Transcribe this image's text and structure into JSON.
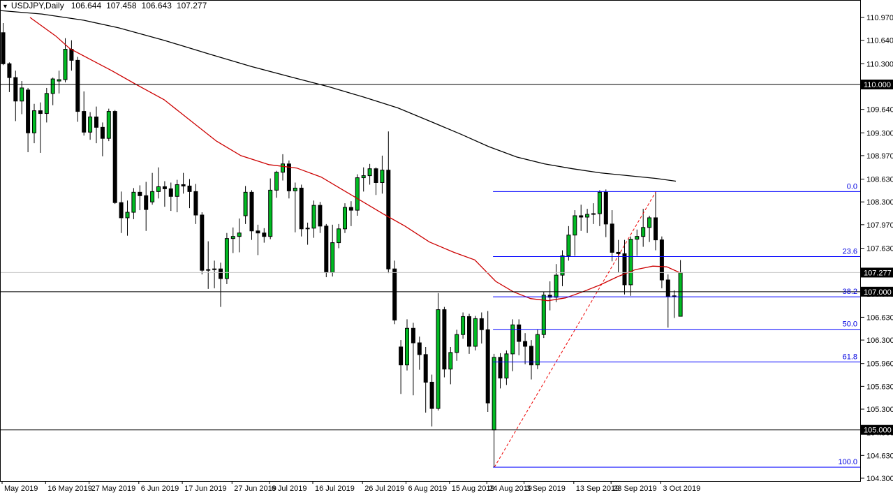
{
  "window": {
    "marker": "▼",
    "symbol_period": "USDJPY,Daily",
    "ohlc_line": {
      "open": "106.644",
      "high": "107.458",
      "low": "106.643",
      "close": "107.277"
    }
  },
  "chart_data": {
    "type": "candlestick",
    "title": "USDJPY,Daily",
    "symbol": "USDJPY",
    "timeframe": "Daily",
    "ylim": [
      104.26,
      111.22
    ],
    "grid": "off",
    "last_bar": {
      "open": 106.644,
      "high": 107.458,
      "low": 106.643,
      "close": 107.277
    },
    "price_axis": {
      "side": "right",
      "ticks": [
        "110.970",
        "110.640",
        "110.300",
        "109.970",
        "109.640",
        "109.300",
        "108.970",
        "108.630",
        "108.300",
        "107.970",
        "107.630",
        "107.300",
        "106.970",
        "106.630",
        "106.300",
        "105.960",
        "105.630",
        "105.300",
        "104.960",
        "104.630",
        "104.300"
      ],
      "boxed_labels": [
        {
          "text": "110.000",
          "price": 110.0,
          "role": "level"
        },
        {
          "text": "107.277",
          "price": 107.277,
          "role": "current-price"
        },
        {
          "text": "107.000",
          "price": 107.0,
          "role": "level"
        },
        {
          "text": "105.000",
          "price": 105.0,
          "role": "level"
        }
      ]
    },
    "time_axis": {
      "labels": [
        {
          "text": "May 2019",
          "bar": 0
        },
        {
          "text": "16 May 2019",
          "bar": 7
        },
        {
          "text": "27 May 2019",
          "bar": 14
        },
        {
          "text": "6 Jun 2019",
          "bar": 22
        },
        {
          "text": "17 Jun 2019",
          "bar": 29
        },
        {
          "text": "27 Jun 2019",
          "bar": 37
        },
        {
          "text": "6 Jul 2019",
          "bar": 43
        },
        {
          "text": "16 Jul 2019",
          "bar": 50
        },
        {
          "text": "26 Jul 2019",
          "bar": 58
        },
        {
          "text": "6 Aug 2019",
          "bar": 65
        },
        {
          "text": "15 Aug 2019",
          "bar": 72
        },
        {
          "text": "24 Aug 2019",
          "bar": 78
        },
        {
          "text": "3 Sep 2019",
          "bar": 84
        },
        {
          "text": "13 Sep 2019",
          "bar": 92
        },
        {
          "text": "23 Sep 2019",
          "bar": 98
        },
        {
          "text": "3 Oct 2019",
          "bar": 106
        }
      ]
    },
    "horizontal_lines": [
      {
        "price": 110.0
      },
      {
        "price": 107.0
      },
      {
        "price": 105.0
      }
    ],
    "current_price_line": {
      "price": 107.277
    },
    "fibonacci": {
      "from_bar": 79,
      "from_price": 104.46,
      "to_bar": 105,
      "to_price": 108.45,
      "levels": [
        {
          "label": "0.0",
          "price": 108.45
        },
        {
          "label": "23.6",
          "price": 107.508
        },
        {
          "label": "38.2",
          "price": 106.926
        },
        {
          "label": "50.0",
          "price": 106.455
        },
        {
          "label": "61.8",
          "price": 105.984
        },
        {
          "label": "100.0",
          "price": 104.46
        }
      ]
    },
    "moving_averages": [
      {
        "name": "ma-slow",
        "color": "#000000",
        "points": [
          [
            0,
            111.07
          ],
          [
            60,
            111.02
          ],
          [
            120,
            110.93
          ],
          [
            170,
            110.82
          ],
          [
            235,
            110.64
          ],
          [
            300,
            110.44
          ],
          [
            360,
            110.26
          ],
          [
            420,
            110.1
          ],
          [
            470,
            109.97
          ],
          [
            520,
            109.82
          ],
          [
            570,
            109.66
          ],
          [
            620,
            109.45
          ],
          [
            660,
            109.28
          ],
          [
            700,
            109.1
          ],
          [
            740,
            108.95
          ],
          [
            780,
            108.85
          ],
          [
            820,
            108.78
          ],
          [
            860,
            108.72
          ],
          [
            900,
            108.68
          ],
          [
            940,
            108.64
          ],
          [
            968,
            108.6
          ]
        ]
      },
      {
        "name": "ma-fast",
        "color": "#CC0000",
        "points": [
          [
            43,
            110.97
          ],
          [
            80,
            110.7
          ],
          [
            100,
            110.52
          ],
          [
            130,
            110.36
          ],
          [
            160,
            110.2
          ],
          [
            195,
            110.0
          ],
          [
            235,
            109.78
          ],
          [
            270,
            109.5
          ],
          [
            310,
            109.18
          ],
          [
            345,
            108.97
          ],
          [
            385,
            108.84
          ],
          [
            425,
            108.79
          ],
          [
            460,
            108.66
          ],
          [
            490,
            108.48
          ],
          [
            520,
            108.3
          ],
          [
            550,
            108.12
          ],
          [
            580,
            107.95
          ],
          [
            615,
            107.72
          ],
          [
            650,
            107.57
          ],
          [
            680,
            107.46
          ],
          [
            710,
            107.15
          ],
          [
            735,
            107.0
          ],
          [
            760,
            106.9
          ],
          [
            785,
            106.87
          ],
          [
            810,
            106.91
          ],
          [
            835,
            107.0
          ],
          [
            860,
            107.1
          ],
          [
            885,
            107.22
          ],
          [
            910,
            107.32
          ],
          [
            935,
            107.37
          ],
          [
            955,
            107.36
          ],
          [
            975,
            107.27
          ]
        ]
      }
    ],
    "candles": [
      [
        "7 May 2019",
        110.75,
        110.89,
        110.28,
        110.3
      ],
      [
        "8 May 2019",
        110.3,
        110.32,
        109.89,
        110.1
      ],
      [
        "9 May 2019",
        110.1,
        110.2,
        109.47,
        109.76
      ],
      [
        "10 May 2019",
        109.76,
        110.05,
        109.57,
        109.95
      ],
      [
        "13 May 2019",
        109.92,
        109.95,
        109.02,
        109.3
      ],
      [
        "14 May 2019",
        109.3,
        109.72,
        109.15,
        109.62
      ],
      [
        "15 May 2019",
        109.62,
        109.74,
        109.01,
        109.58
      ],
      [
        "16 May 2019",
        109.58,
        109.95,
        109.45,
        109.87
      ],
      [
        "17 May 2019",
        109.87,
        110.1,
        109.7,
        110.08
      ],
      [
        "20 May 2019",
        110.05,
        110.2,
        109.87,
        110.07
      ],
      [
        "21 May 2019",
        110.07,
        110.67,
        110.03,
        110.51
      ],
      [
        "22 May 2019",
        110.51,
        110.64,
        110.2,
        110.35
      ],
      [
        "23 May 2019",
        110.35,
        110.4,
        109.46,
        109.61
      ],
      [
        "24 May 2019",
        109.61,
        109.9,
        109.26,
        109.31
      ],
      [
        "27 May 2019",
        109.31,
        109.6,
        109.2,
        109.53
      ],
      [
        "28 May 2019",
        109.53,
        109.68,
        109.15,
        109.38
      ],
      [
        "29 May 2019",
        109.38,
        109.45,
        108.96,
        109.22
      ],
      [
        "30 May 2019",
        109.22,
        109.65,
        109.18,
        109.61
      ],
      [
        "31 May 2019",
        109.61,
        109.63,
        108.27,
        108.29
      ],
      [
        "3 Jun 2019",
        108.29,
        108.45,
        107.85,
        108.07
      ],
      [
        "4 Jun 2019",
        108.07,
        108.32,
        107.81,
        108.15
      ],
      [
        "5 Jun 2019",
        108.15,
        108.5,
        108.05,
        108.44
      ],
      [
        "6 Jun 2019",
        108.44,
        108.54,
        108.18,
        108.39
      ],
      [
        "7 Jun 2019",
        108.39,
        108.59,
        107.88,
        108.19
      ],
      [
        "10 Jun 2019",
        108.3,
        108.72,
        108.26,
        108.45
      ],
      [
        "11 Jun 2019",
        108.45,
        108.8,
        108.35,
        108.52
      ],
      [
        "12 Jun 2019",
        108.52,
        108.6,
        108.23,
        108.49
      ],
      [
        "13 Jun 2019",
        108.49,
        108.58,
        108.17,
        108.38
      ],
      [
        "14 Jun 2019",
        108.38,
        108.62,
        108.15,
        108.55
      ],
      [
        "17 Jun 2019",
        108.55,
        108.72,
        108.42,
        108.53
      ],
      [
        "18 Jun 2019",
        108.53,
        108.63,
        108.21,
        108.45
      ],
      [
        "19 Jun 2019",
        108.45,
        108.56,
        107.98,
        108.11
      ],
      [
        "20 Jun 2019",
        108.11,
        108.15,
        107.25,
        107.31
      ],
      [
        "21 Jun 2019",
        107.31,
        107.73,
        107.04,
        107.32
      ],
      [
        "24 Jun 2019",
        107.32,
        107.45,
        107.05,
        107.33
      ],
      [
        "25 Jun 2019",
        107.33,
        107.42,
        106.78,
        107.19
      ],
      [
        "26 Jun 2019",
        107.19,
        107.85,
        107.11,
        107.77
      ],
      [
        "27 Jun 2019",
        107.77,
        107.93,
        107.56,
        107.8
      ],
      [
        "28 Jun 2019",
        107.8,
        108.06,
        107.57,
        107.85
      ],
      [
        "1 Jul 2019",
        108.1,
        108.53,
        107.98,
        108.44
      ],
      [
        "2 Jul 2019",
        108.44,
        108.47,
        107.75,
        107.88
      ],
      [
        "3 Jul 2019",
        107.88,
        107.97,
        107.53,
        107.85
      ],
      [
        "4 Jul 2019",
        107.85,
        107.92,
        107.71,
        107.8
      ],
      [
        "5 Jul 2019",
        107.8,
        108.64,
        107.76,
        108.47
      ],
      [
        "8 Jul 2019",
        108.47,
        108.75,
        108.36,
        108.73
      ],
      [
        "9 Jul 2019",
        108.73,
        108.99,
        108.61,
        108.85
      ],
      [
        "10 Jul 2019",
        108.85,
        108.9,
        108.35,
        108.46
      ],
      [
        "11 Jul 2019",
        108.46,
        108.58,
        107.86,
        108.5
      ],
      [
        "12 Jul 2019",
        108.5,
        108.55,
        107.8,
        107.91
      ],
      [
        "15 Jul 2019",
        107.91,
        108.0,
        107.68,
        107.92
      ],
      [
        "16 Jul 2019",
        107.92,
        108.32,
        107.78,
        108.25
      ],
      [
        "17 Jul 2019",
        108.25,
        108.3,
        107.85,
        107.95
      ],
      [
        "18 Jul 2019",
        107.95,
        107.98,
        107.21,
        107.28
      ],
      [
        "19 Jul 2019",
        107.28,
        107.97,
        107.22,
        107.71
      ],
      [
        "22 Jul 2019",
        107.71,
        107.98,
        107.63,
        107.91
      ],
      [
        "23 Jul 2019",
        107.91,
        108.28,
        107.85,
        108.22
      ],
      [
        "24 Jul 2019",
        108.22,
        108.31,
        107.95,
        108.18
      ],
      [
        "25 Jul 2019",
        108.18,
        108.7,
        108.1,
        108.65
      ],
      [
        "26 Jul 2019",
        108.65,
        108.8,
        108.45,
        108.68
      ],
      [
        "29 Jul 2019",
        108.68,
        108.85,
        108.55,
        108.78
      ],
      [
        "30 Jul 2019",
        108.78,
        108.8,
        108.4,
        108.58
      ],
      [
        "31 Jul 2019",
        108.58,
        108.97,
        108.42,
        108.76
      ],
      [
        "1 Aug 2019",
        108.76,
        109.32,
        107.27,
        107.33
      ],
      [
        "2 Aug 2019",
        107.33,
        107.45,
        106.53,
        106.59
      ],
      [
        "5 Aug 2019",
        106.2,
        106.3,
        105.52,
        105.94
      ],
      [
        "6 Aug 2019",
        105.94,
        106.6,
        105.86,
        106.47
      ],
      [
        "7 Aug 2019",
        106.47,
        106.55,
        105.5,
        106.26
      ],
      [
        "8 Aug 2019",
        106.26,
        106.35,
        105.87,
        106.09
      ],
      [
        "9 Aug 2019",
        106.09,
        106.2,
        105.25,
        105.69
      ],
      [
        "12 Aug 2019",
        105.69,
        105.8,
        105.05,
        105.31
      ],
      [
        "13 Aug 2019",
        105.31,
        106.98,
        105.28,
        106.74
      ],
      [
        "14 Aug 2019",
        106.74,
        106.78,
        105.76,
        105.88
      ],
      [
        "15 Aug 2019",
        105.88,
        106.2,
        105.66,
        106.12
      ],
      [
        "16 Aug 2019",
        106.12,
        106.45,
        106.0,
        106.38
      ],
      [
        "19 Aug 2019",
        106.38,
        106.7,
        106.32,
        106.64
      ],
      [
        "20 Aug 2019",
        106.64,
        106.68,
        106.1,
        106.21
      ],
      [
        "21 Aug 2019",
        106.21,
        106.65,
        106.15,
        106.61
      ],
      [
        "22 Aug 2019",
        106.61,
        106.7,
        106.25,
        106.45
      ],
      [
        "23 Aug 2019",
        106.45,
        106.72,
        105.26,
        105.39
      ],
      [
        "26 Aug 2019",
        105.0,
        106.1,
        104.46,
        106.05
      ],
      [
        "27 Aug 2019",
        106.05,
        106.11,
        105.6,
        105.75
      ],
      [
        "28 Aug 2019",
        105.75,
        106.15,
        105.65,
        106.1
      ],
      [
        "29 Aug 2019",
        106.1,
        106.6,
        105.85,
        106.52
      ],
      [
        "30 Aug 2019",
        106.52,
        106.6,
        106.08,
        106.28
      ],
      [
        "2 Sep 2019",
        106.28,
        106.4,
        105.95,
        106.21
      ],
      [
        "3 Sep 2019",
        106.21,
        106.3,
        105.73,
        105.94
      ],
      [
        "4 Sep 2019",
        105.94,
        106.45,
        105.88,
        106.38
      ],
      [
        "5 Sep 2019",
        106.38,
        107.0,
        106.33,
        106.95
      ],
      [
        "6 Sep 2019",
        106.95,
        107.15,
        106.73,
        106.92
      ],
      [
        "9 Sep 2019",
        106.92,
        107.4,
        106.85,
        107.24
      ],
      [
        "10 Sep 2019",
        107.24,
        107.6,
        107.08,
        107.52
      ],
      [
        "11 Sep 2019",
        107.52,
        107.95,
        107.45,
        107.82
      ],
      [
        "12 Sep 2019",
        107.82,
        108.18,
        107.52,
        108.1
      ],
      [
        "13 Sep 2019",
        108.1,
        108.26,
        107.88,
        108.08
      ],
      [
        "16 Sep 2019",
        108.08,
        108.2,
        107.85,
        108.12
      ],
      [
        "17 Sep 2019",
        108.12,
        108.28,
        107.98,
        108.13
      ],
      [
        "18 Sep 2019",
        108.13,
        108.47,
        107.95,
        108.44
      ],
      [
        "19 Sep 2019",
        108.44,
        108.48,
        107.79,
        107.98
      ],
      [
        "20 Sep 2019",
        107.98,
        108.18,
        107.44,
        107.57
      ],
      [
        "23 Sep 2019",
        107.57,
        107.75,
        107.28,
        107.55
      ],
      [
        "24 Sep 2019",
        107.55,
        107.75,
        106.96,
        107.1
      ],
      [
        "25 Sep 2019",
        107.1,
        107.8,
        106.94,
        107.76
      ],
      [
        "26 Sep 2019",
        107.76,
        107.9,
        107.52,
        107.8
      ],
      [
        "27 Sep 2019",
        107.8,
        108.2,
        107.65,
        107.93
      ],
      [
        "30 Sep 2019",
        107.93,
        108.1,
        107.72,
        108.07
      ],
      [
        "1 Oct 2019",
        108.07,
        108.45,
        107.6,
        107.75
      ],
      [
        "2 Oct 2019",
        107.75,
        107.8,
        107.05,
        107.17
      ],
      [
        "3 Oct 2019",
        107.17,
        107.25,
        106.48,
        106.93
      ],
      [
        "4 Oct 2019",
        106.93,
        107.02,
        106.62,
        106.94
      ],
      [
        "7 Oct 2019",
        106.644,
        107.458,
        106.643,
        107.277
      ]
    ],
    "colors": {
      "background": "#FFFFFF",
      "up_candle": "#00BB22",
      "down_candle": "#000000",
      "candle_outline": "#000000",
      "fib_line": "#0000FF",
      "fib_label": "#0000E0",
      "fib_baseline": "#EE0000",
      "ma_slow": "#000000",
      "ma_fast": "#CC0000",
      "level_line": "#000000",
      "current_price_line": "#C4C4C4",
      "axis_text": "#000000",
      "price_box_bg": "#000000",
      "price_box_text": "#FFFFFF",
      "border": "#000000"
    }
  }
}
